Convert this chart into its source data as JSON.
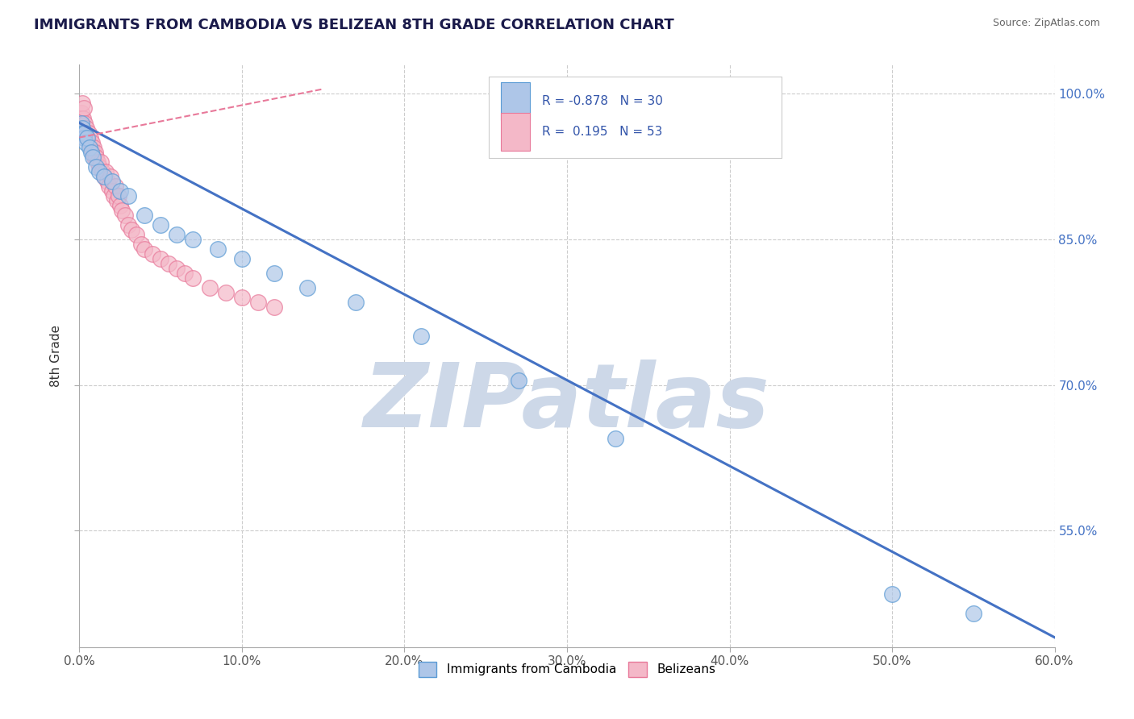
{
  "title": "IMMIGRANTS FROM CAMBODIA VS BELIZEAN 8TH GRADE CORRELATION CHART",
  "source": "Source: ZipAtlas.com",
  "ylabel": "8th Grade",
  "x_tick_labels": [
    "0.0%",
    "10.0%",
    "20.0%",
    "30.0%",
    "40.0%",
    "50.0%",
    "60.0%"
  ],
  "x_tick_values": [
    0.0,
    10.0,
    20.0,
    30.0,
    40.0,
    50.0,
    60.0
  ],
  "y_tick_labels": [
    "100.0%",
    "85.0%",
    "70.0%",
    "55.0%"
  ],
  "y_tick_values": [
    100.0,
    85.0,
    70.0,
    55.0
  ],
  "xlim": [
    0.0,
    60.0
  ],
  "ylim": [
    43.0,
    103.0
  ],
  "blue_R": -0.878,
  "blue_N": 30,
  "pink_R": 0.195,
  "pink_N": 53,
  "blue_color": "#aec6e8",
  "blue_edge_color": "#5b9bd5",
  "pink_color": "#f4b8c8",
  "pink_edge_color": "#e8799a",
  "blue_line_color": "#4472c4",
  "pink_line_color": "#e8799a",
  "grid_color": "#cccccc",
  "background_color": "#ffffff",
  "watermark_text": "ZIPatlas",
  "watermark_color": "#cdd8e8",
  "legend_label_blue": "Immigrants from Cambodia",
  "legend_label_pink": "Belizeans",
  "blue_line_x0": 0.0,
  "blue_line_y0": 97.0,
  "blue_line_x1": 60.0,
  "blue_line_y1": 44.0,
  "pink_line_x0": 0.0,
  "pink_line_y0": 95.5,
  "pink_line_x1": 15.0,
  "pink_line_y1": 100.5,
  "blue_scatter_x": [
    0.15,
    0.2,
    0.25,
    0.3,
    0.35,
    0.4,
    0.5,
    0.6,
    0.7,
    0.8,
    1.0,
    1.2,
    1.5,
    2.0,
    2.5,
    3.0,
    4.0,
    5.0,
    6.0,
    7.0,
    8.5,
    10.0,
    12.0,
    14.0,
    17.0,
    21.0,
    27.0,
    33.0,
    50.0,
    55.0
  ],
  "blue_scatter_y": [
    97.0,
    96.5,
    96.0,
    95.5,
    96.0,
    95.0,
    95.5,
    94.5,
    94.0,
    93.5,
    92.5,
    92.0,
    91.5,
    91.0,
    90.0,
    89.5,
    87.5,
    86.5,
    85.5,
    85.0,
    84.0,
    83.0,
    81.5,
    80.0,
    78.5,
    75.0,
    70.5,
    64.5,
    48.5,
    46.5
  ],
  "pink_scatter_x": [
    0.05,
    0.1,
    0.15,
    0.2,
    0.25,
    0.3,
    0.35,
    0.4,
    0.45,
    0.5,
    0.55,
    0.6,
    0.65,
    0.7,
    0.75,
    0.8,
    0.85,
    0.9,
    0.95,
    1.0,
    1.1,
    1.2,
    1.3,
    1.4,
    1.5,
    1.6,
    1.7,
    1.8,
    1.9,
    2.0,
    2.1,
    2.2,
    2.3,
    2.4,
    2.5,
    2.6,
    2.8,
    3.0,
    3.2,
    3.5,
    3.8,
    4.0,
    4.5,
    5.0,
    5.5,
    6.0,
    6.5,
    7.0,
    8.0,
    9.0,
    10.0,
    11.0,
    12.0
  ],
  "pink_scatter_y": [
    96.5,
    97.5,
    98.0,
    99.0,
    97.5,
    98.5,
    97.0,
    96.0,
    96.5,
    95.5,
    96.0,
    95.0,
    95.5,
    94.5,
    95.0,
    94.0,
    94.5,
    93.5,
    94.0,
    93.5,
    93.0,
    92.5,
    93.0,
    92.0,
    91.5,
    92.0,
    91.0,
    90.5,
    91.5,
    90.0,
    89.5,
    90.5,
    89.0,
    89.5,
    88.5,
    88.0,
    87.5,
    86.5,
    86.0,
    85.5,
    84.5,
    84.0,
    83.5,
    83.0,
    82.5,
    82.0,
    81.5,
    81.0,
    80.0,
    79.5,
    79.0,
    78.5,
    78.0
  ]
}
